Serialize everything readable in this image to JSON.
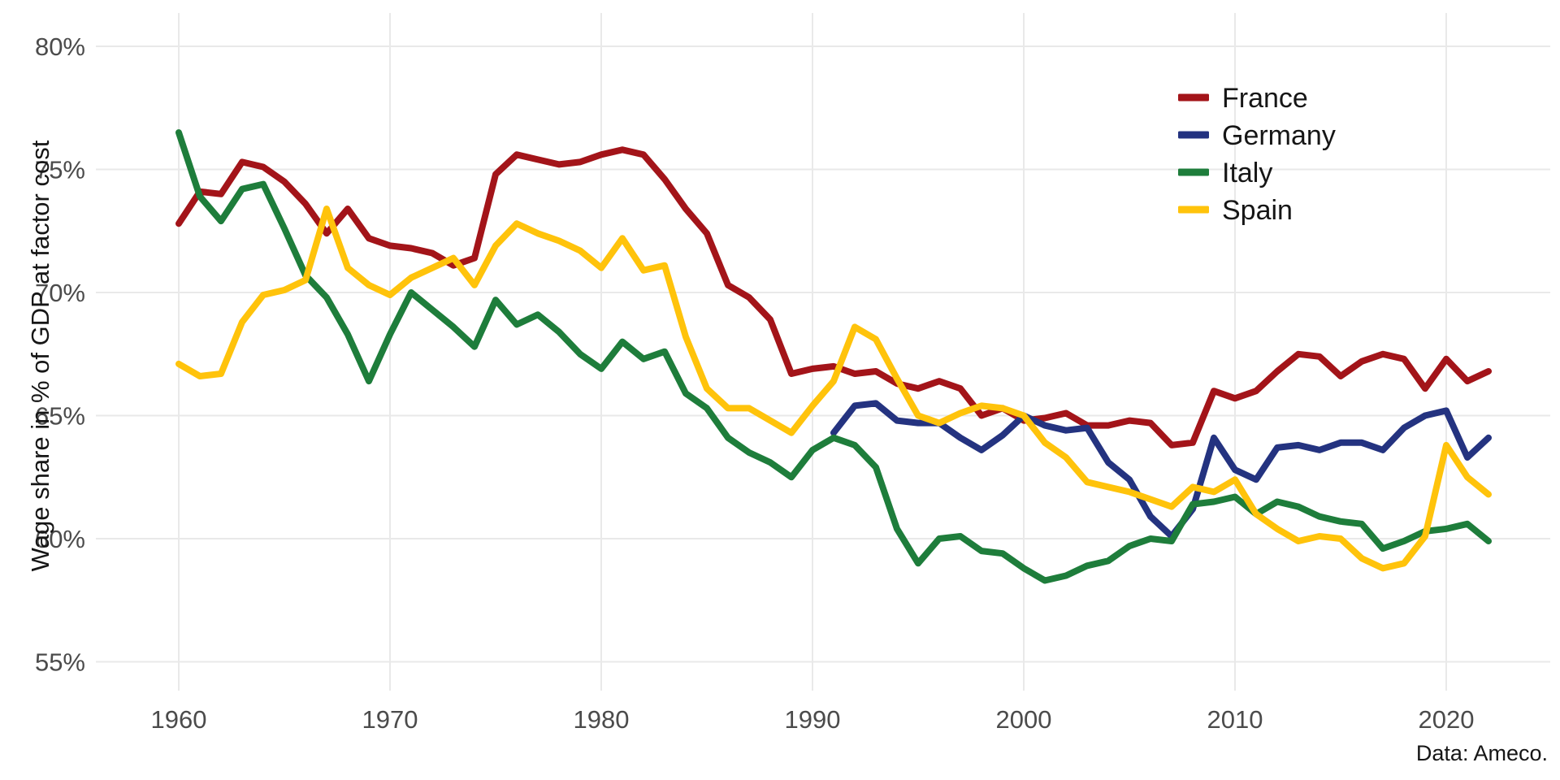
{
  "page": {
    "background": "#ffffff",
    "source_note": "Data: Ameco."
  },
  "chart_data": {
    "type": "line",
    "title": "",
    "xlabel": "",
    "ylabel": "Wage share in % of GDP at factor cost",
    "grid": true,
    "legend_position": "top-right",
    "xlim": [
      1956,
      2025.5
    ],
    "ylim": [
      53.5,
      81.5
    ],
    "x_ticks": [
      {
        "value": 1960,
        "label": "1960"
      },
      {
        "value": 1970,
        "label": "1970"
      },
      {
        "value": 1980,
        "label": "1980"
      },
      {
        "value": 1990,
        "label": "1990"
      },
      {
        "value": 2000,
        "label": "2000"
      },
      {
        "value": 2010,
        "label": "2010"
      },
      {
        "value": 2020,
        "label": "2020"
      }
    ],
    "y_ticks": [
      {
        "value": 80,
        "label": "80%"
      },
      {
        "value": 75,
        "label": "75%"
      },
      {
        "value": 70,
        "label": "70%"
      },
      {
        "value": 65,
        "label": "65%"
      },
      {
        "value": 60,
        "label": "60%"
      },
      {
        "value": 55,
        "label": "55%"
      }
    ],
    "axis_text_color": "#4b4b4b",
    "grid_color": "#e9e9e9",
    "x": [
      1960,
      1961,
      1962,
      1963,
      1964,
      1965,
      1966,
      1967,
      1968,
      1969,
      1970,
      1971,
      1972,
      1973,
      1974,
      1975,
      1976,
      1977,
      1978,
      1979,
      1980,
      1981,
      1982,
      1983,
      1984,
      1985,
      1986,
      1987,
      1988,
      1989,
      1990,
      1991,
      1992,
      1993,
      1994,
      1995,
      1996,
      1997,
      1998,
      1999,
      2000,
      2001,
      2002,
      2003,
      2004,
      2005,
      2006,
      2007,
      2008,
      2009,
      2010,
      2011,
      2012,
      2013,
      2014,
      2015,
      2016,
      2017,
      2018,
      2019,
      2020,
      2021,
      2022
    ],
    "series": [
      {
        "name": "France",
        "color": "#A31419",
        "values": [
          72.8,
          74.1,
          74.0,
          75.3,
          75.1,
          74.5,
          73.6,
          72.4,
          73.4,
          72.2,
          71.9,
          71.8,
          71.6,
          71.1,
          71.4,
          74.8,
          75.6,
          75.4,
          75.2,
          75.3,
          75.6,
          75.8,
          75.6,
          74.6,
          73.4,
          72.4,
          70.3,
          69.8,
          68.9,
          66.7,
          66.9,
          67.0,
          66.7,
          66.8,
          66.3,
          66.1,
          66.4,
          66.1,
          65.0,
          65.3,
          64.8,
          64.9,
          65.1,
          64.6,
          64.6,
          64.8,
          64.7,
          63.8,
          63.9,
          66.0,
          65.7,
          66.0,
          66.8,
          67.5,
          67.4,
          66.6,
          67.2,
          67.5,
          67.3,
          66.1,
          67.3,
          66.4,
          66.8
        ]
      },
      {
        "name": "Germany",
        "color": "#243380",
        "values": [
          null,
          null,
          null,
          null,
          null,
          null,
          null,
          null,
          null,
          null,
          null,
          null,
          null,
          null,
          null,
          null,
          null,
          null,
          null,
          null,
          null,
          null,
          null,
          null,
          null,
          null,
          null,
          null,
          null,
          null,
          null,
          64.3,
          65.4,
          65.5,
          64.8,
          64.7,
          64.7,
          64.1,
          63.6,
          64.2,
          65.0,
          64.6,
          64.4,
          64.5,
          63.1,
          62.4,
          60.9,
          60.1,
          61.2,
          64.1,
          62.8,
          62.4,
          63.7,
          63.8,
          63.6,
          63.9,
          63.9,
          63.6,
          64.5,
          65.0,
          65.2,
          63.3,
          64.1
        ]
      },
      {
        "name": "Italy",
        "color": "#1E7D3B",
        "values": [
          76.5,
          73.9,
          72.9,
          74.2,
          74.4,
          72.6,
          70.7,
          69.8,
          68.3,
          66.4,
          68.3,
          70.0,
          69.3,
          68.6,
          67.8,
          69.7,
          68.7,
          69.1,
          68.4,
          67.5,
          66.9,
          68.0,
          67.3,
          67.6,
          65.9,
          65.3,
          64.1,
          63.5,
          63.1,
          62.5,
          63.6,
          64.1,
          63.8,
          62.9,
          60.4,
          59.0,
          60.0,
          60.1,
          59.5,
          59.4,
          58.8,
          58.3,
          58.5,
          58.9,
          59.1,
          59.7,
          60.0,
          59.9,
          61.4,
          61.5,
          61.7,
          61.0,
          61.5,
          61.3,
          60.9,
          60.7,
          60.6,
          59.6,
          59.9,
          60.3,
          60.4,
          60.6,
          59.9
        ]
      },
      {
        "name": "Spain",
        "color": "#FFC30B",
        "values": [
          67.1,
          66.6,
          66.7,
          68.8,
          69.9,
          70.1,
          70.5,
          73.4,
          71.0,
          70.3,
          69.9,
          70.6,
          71.0,
          71.4,
          70.3,
          71.9,
          72.8,
          72.4,
          72.1,
          71.7,
          71.0,
          72.2,
          70.9,
          71.1,
          68.2,
          66.1,
          65.3,
          65.3,
          64.8,
          64.3,
          65.4,
          66.4,
          68.6,
          68.1,
          66.5,
          65.0,
          64.7,
          65.1,
          65.4,
          65.3,
          65.0,
          63.9,
          63.3,
          62.3,
          62.1,
          61.9,
          61.6,
          61.3,
          62.1,
          61.9,
          62.4,
          61.0,
          60.4,
          59.9,
          60.1,
          60.0,
          59.2,
          58.8,
          59.0,
          60.1,
          63.8,
          62.5,
          61.8
        ]
      }
    ]
  }
}
